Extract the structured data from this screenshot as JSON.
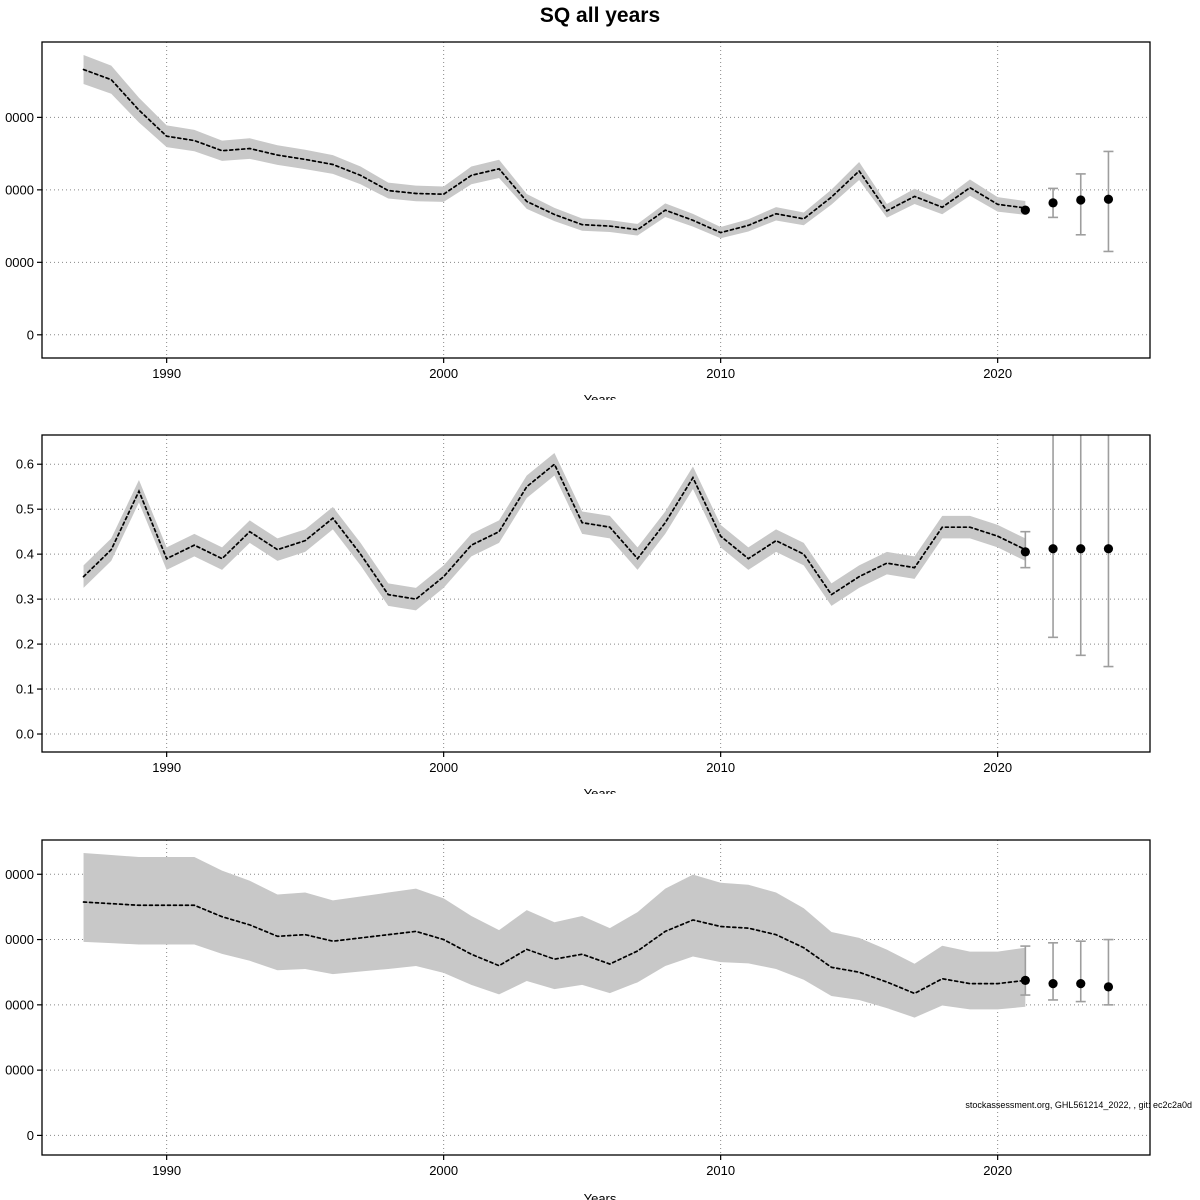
{
  "title": "SQ all years",
  "footer": "stockassessment.org, GHL561214_2022, , git: ec2c2a0d",
  "colors": {
    "band": "#c8c8c8",
    "line": "#000000",
    "error_bar": "#9e9e9e",
    "grid": "#888888",
    "forecast_dot": "#000000",
    "axis": "#000000"
  },
  "chart_data": [
    {
      "type": "line",
      "panel": "top",
      "xlabel": "Years",
      "xlim": [
        1985.5,
        2025.5
      ],
      "ylim": [
        -16000,
        202000
      ],
      "grid": true,
      "xticks": [
        {
          "v": 1990,
          "label": "1990"
        },
        {
          "v": 2000,
          "label": "2000"
        },
        {
          "v": 2010,
          "label": "2010"
        },
        {
          "v": 2020,
          "label": "2020"
        }
      ],
      "yticks": [
        {
          "v": 0,
          "label": "0"
        },
        {
          "v": 50000,
          "label": "0000"
        },
        {
          "v": 100000,
          "label": "0000"
        },
        {
          "v": 150000,
          "label": "0000"
        }
      ],
      "years": [
        1987,
        1988,
        1989,
        1990,
        1991,
        1992,
        1993,
        1994,
        1995,
        1996,
        1997,
        1998,
        1999,
        2000,
        2001,
        2002,
        2003,
        2004,
        2005,
        2006,
        2007,
        2008,
        2009,
        2010,
        2011,
        2012,
        2013,
        2014,
        2015,
        2016,
        2017,
        2018,
        2019,
        2020,
        2021
      ],
      "values": [
        183000,
        176000,
        155000,
        137000,
        134000,
        127000,
        128500,
        124000,
        121000,
        117500,
        110000,
        99500,
        97500,
        97000,
        110000,
        114500,
        92000,
        83000,
        76000,
        75000,
        72500,
        86000,
        79000,
        70500,
        75500,
        83500,
        80000,
        95000,
        113000,
        85500,
        95500,
        88000,
        101500,
        90000,
        87500
      ],
      "band_lo": [
        173000,
        166300,
        146500,
        129500,
        126600,
        120000,
        121400,
        117200,
        114300,
        111000,
        103900,
        94000,
        92100,
        91700,
        103900,
        108200,
        86900,
        78400,
        71800,
        70900,
        68500,
        81300,
        74600,
        66600,
        71300,
        78900,
        75600,
        89800,
        106800,
        80800,
        90200,
        83200,
        95900,
        85000,
        82700
      ],
      "band_hi": [
        193000,
        185700,
        163500,
        144500,
        141400,
        134000,
        135600,
        130800,
        127700,
        124000,
        116100,
        105000,
        102900,
        102300,
        116100,
        120800,
        97100,
        87600,
        80200,
        79100,
        76500,
        90700,
        83400,
        74400,
        79700,
        88100,
        84400,
        100200,
        119200,
        90200,
        100800,
        92800,
        107100,
        95000,
        92300
      ],
      "forecast": [
        {
          "year": 2021,
          "value": 86000,
          "lo": null,
          "hi": null
        },
        {
          "year": 2022,
          "value": 91000,
          "lo": 81000,
          "hi": 101000
        },
        {
          "year": 2023,
          "value": 93000,
          "lo": 69000,
          "hi": 111000
        },
        {
          "year": 2024,
          "value": 93500,
          "lo": 57500,
          "hi": 126500
        }
      ]
    },
    {
      "type": "line",
      "panel": "middle",
      "xlabel": "Years",
      "xlim": [
        1985.5,
        2025.5
      ],
      "ylim": [
        -0.04,
        0.665
      ],
      "grid": true,
      "xticks": [
        {
          "v": 1990,
          "label": "1990"
        },
        {
          "v": 2000,
          "label": "2000"
        },
        {
          "v": 2010,
          "label": "2010"
        },
        {
          "v": 2020,
          "label": "2020"
        }
      ],
      "yticks": [
        {
          "v": 0,
          "label": "0.0"
        },
        {
          "v": 0.1,
          "label": "0.1"
        },
        {
          "v": 0.2,
          "label": "0.2"
        },
        {
          "v": 0.3,
          "label": "0.3"
        },
        {
          "v": 0.4,
          "label": "0.4"
        },
        {
          "v": 0.5,
          "label": "0.5"
        },
        {
          "v": 0.6,
          "label": "0.6"
        }
      ],
      "years": [
        1987,
        1988,
        1989,
        1990,
        1991,
        1992,
        1993,
        1994,
        1995,
        1996,
        1997,
        1998,
        1999,
        2000,
        2001,
        2002,
        2003,
        2004,
        2005,
        2006,
        2007,
        2008,
        2009,
        2010,
        2011,
        2012,
        2013,
        2014,
        2015,
        2016,
        2017,
        2018,
        2019,
        2020,
        2021
      ],
      "values": [
        0.35,
        0.41,
        0.54,
        0.39,
        0.42,
        0.39,
        0.45,
        0.41,
        0.43,
        0.48,
        0.4,
        0.31,
        0.3,
        0.35,
        0.42,
        0.45,
        0.55,
        0.6,
        0.47,
        0.46,
        0.39,
        0.47,
        0.57,
        0.44,
        0.39,
        0.43,
        0.4,
        0.31,
        0.35,
        0.38,
        0.37,
        0.46,
        0.46,
        0.44,
        0.41
      ],
      "band_lo": [
        0.325,
        0.385,
        0.515,
        0.365,
        0.395,
        0.365,
        0.425,
        0.385,
        0.405,
        0.455,
        0.375,
        0.285,
        0.275,
        0.325,
        0.395,
        0.425,
        0.525,
        0.575,
        0.445,
        0.435,
        0.365,
        0.445,
        0.545,
        0.415,
        0.365,
        0.405,
        0.375,
        0.285,
        0.325,
        0.355,
        0.345,
        0.435,
        0.435,
        0.415,
        0.385
      ],
      "band_hi": [
        0.375,
        0.435,
        0.565,
        0.415,
        0.445,
        0.415,
        0.475,
        0.435,
        0.455,
        0.505,
        0.425,
        0.335,
        0.325,
        0.375,
        0.445,
        0.475,
        0.575,
        0.625,
        0.495,
        0.485,
        0.415,
        0.495,
        0.595,
        0.465,
        0.415,
        0.455,
        0.425,
        0.335,
        0.375,
        0.405,
        0.395,
        0.485,
        0.485,
        0.465,
        0.435
      ],
      "forecast": [
        {
          "year": 2021,
          "value": 0.405,
          "lo": 0.37,
          "hi": 0.45
        },
        {
          "year": 2022,
          "value": 0.412,
          "lo": 0.215,
          "hi": 0.72
        },
        {
          "year": 2023,
          "value": 0.412,
          "lo": 0.175,
          "hi": 0.76
        },
        {
          "year": 2024,
          "value": 0.412,
          "lo": 0.15,
          "hi": 0.8
        }
      ]
    },
    {
      "type": "line",
      "panel": "bottom",
      "xlabel": "Years",
      "xlim": [
        1985.5,
        2025.5
      ],
      "ylim": [
        -6000,
        90500
      ],
      "grid": true,
      "xticks": [
        {
          "v": 1990,
          "label": "1990"
        },
        {
          "v": 2000,
          "label": "2000"
        },
        {
          "v": 2010,
          "label": "2010"
        },
        {
          "v": 2020,
          "label": "2020"
        }
      ],
      "yticks": [
        {
          "v": 0,
          "label": "0"
        },
        {
          "v": 20000,
          "label": "0000"
        },
        {
          "v": 40000,
          "label": "0000"
        },
        {
          "v": 60000,
          "label": "0000"
        },
        {
          "v": 80000,
          "label": "0000"
        }
      ],
      "years": [
        1987,
        1988,
        1989,
        1990,
        1991,
        1992,
        1993,
        1994,
        1995,
        1996,
        1997,
        1998,
        1999,
        2000,
        2001,
        2002,
        2003,
        2004,
        2005,
        2006,
        2007,
        2008,
        2009,
        2010,
        2011,
        2012,
        2013,
        2014,
        2015,
        2016,
        2017,
        2018,
        2019,
        2020,
        2021
      ],
      "values": [
        71500,
        71000,
        70500,
        70500,
        70500,
        67000,
        64500,
        61000,
        61500,
        59500,
        60500,
        61500,
        62500,
        60000,
        55500,
        52000,
        57000,
        54000,
        55500,
        52500,
        56500,
        62500,
        66000,
        64000,
        63500,
        61500,
        57500,
        51500,
        50000,
        47000,
        43500,
        48000,
        46500,
        46500,
        47500
      ],
      "band_lo": [
        59300,
        58900,
        58500,
        58500,
        58500,
        55600,
        53500,
        50600,
        51000,
        49400,
        50200,
        51000,
        51900,
        49800,
        46100,
        43200,
        47300,
        44800,
        46100,
        43600,
        46900,
        51900,
        54800,
        53100,
        52700,
        51000,
        47700,
        42700,
        41500,
        39000,
        36100,
        39800,
        38600,
        38600,
        39400
      ],
      "band_hi": [
        86500,
        85900,
        85300,
        85300,
        85300,
        81100,
        78000,
        73800,
        74400,
        72000,
        73200,
        74400,
        75600,
        72600,
        67200,
        62900,
        69000,
        65300,
        67200,
        63500,
        68400,
        75600,
        79900,
        77400,
        76800,
        74400,
        69600,
        62300,
        60500,
        56900,
        52600,
        58100,
        56300,
        56300,
        57500
      ],
      "forecast": [
        {
          "year": 2021,
          "value": 47500,
          "lo": 43000,
          "hi": 58000
        },
        {
          "year": 2022,
          "value": 46500,
          "lo": 41500,
          "hi": 59000
        },
        {
          "year": 2023,
          "value": 46500,
          "lo": 41000,
          "hi": 59500
        },
        {
          "year": 2024,
          "value": 45500,
          "lo": 40000,
          "hi": 60000
        }
      ]
    }
  ]
}
